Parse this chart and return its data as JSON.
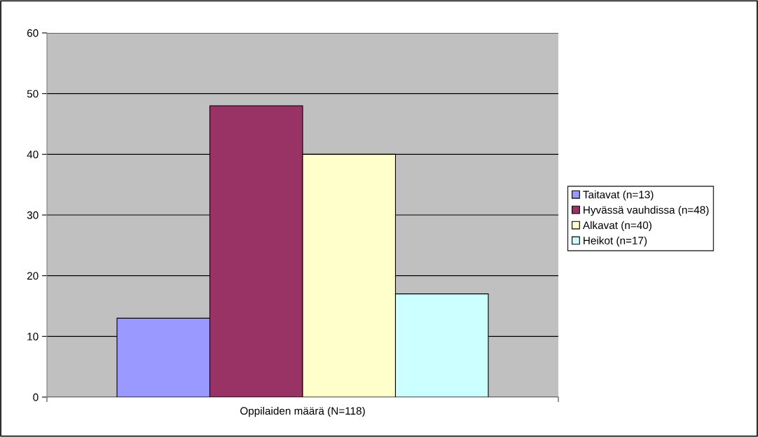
{
  "chart_data": {
    "type": "bar",
    "categories": [
      "Oppilaiden määrä (N=118)"
    ],
    "series": [
      {
        "name": "Taitavat (n=13)",
        "color": "#9999ff",
        "values": [
          13
        ]
      },
      {
        "name": "Hyvässä vauhdissa (n=48)",
        "color": "#993366",
        "values": [
          48
        ]
      },
      {
        "name": "Alkavat (n=40)",
        "color": "#ffffcc",
        "values": [
          40
        ]
      },
      {
        "name": "Heikot (n=17)",
        "color": "#ccffff",
        "values": [
          17
        ]
      }
    ],
    "ylim": [
      0,
      60
    ],
    "yticks": [
      0,
      10,
      20,
      30,
      40,
      50,
      60
    ],
    "grid": "y",
    "legend": "right"
  }
}
